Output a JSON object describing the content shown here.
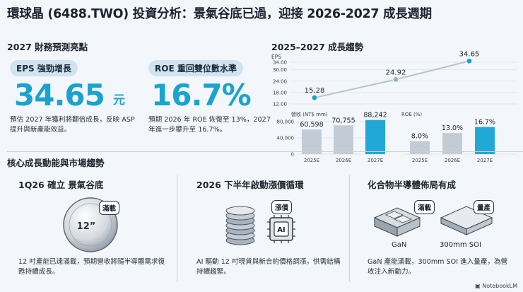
{
  "title": "環球晶 (6488.TWO) 投資分析：景氣谷底已過，迎接 2026-2027 成長週期",
  "highlights": {
    "heading": "2027 財務預測亮點",
    "eps": {
      "label": "EPS 強勁增長",
      "value": "34.65",
      "unit": "元",
      "desc": "預估 2027 年獲利將翻倍成長，反映 ASP 提升與新產能效益。"
    },
    "roe": {
      "label": "ROE 重回雙位數水準",
      "value": "16.7%",
      "desc": "預期 2026 年 ROE 恢復至 13%，2027 年進一步攀升至 16.7%。"
    }
  },
  "trend": {
    "heading": "2025–2027 成長趨勢",
    "eps_label": "EPS"
  },
  "chart_data": [
    {
      "type": "line",
      "title": "",
      "ylabel": "EPS",
      "x": [
        "2025E",
        "2026E",
        "2027E"
      ],
      "values": [
        15.28,
        24.92,
        34.65
      ],
      "data_labels": [
        "15.28",
        "24.92",
        "34.65"
      ],
      "ylim": [
        12,
        34
      ],
      "yticks": [
        "34.00",
        "30.00",
        "24.00",
        "18.00",
        "12.00"
      ],
      "color": "#1aa3cf"
    },
    {
      "type": "bar",
      "ylabel": "營收 (NT$ mm)",
      "categories": [
        "2025E",
        "2026E",
        "2027E"
      ],
      "values": [
        60598,
        70755,
        88242
      ],
      "data_labels": [
        "60,598",
        "70,755",
        "88,242"
      ],
      "ylim": [
        0,
        80000
      ],
      "yticks": [
        "80,000",
        "40,000",
        "0"
      ],
      "colors": [
        "#c3ccd6",
        "#c3ccd6",
        "#22a8d6"
      ]
    },
    {
      "type": "bar",
      "ylabel": "ROE (%)",
      "categories": [
        "2025E",
        "2026E",
        "2027E"
      ],
      "values": [
        8.0,
        13.0,
        16.7
      ],
      "data_labels": [
        "8.0%",
        "13.0%",
        "16.7%"
      ],
      "ylim": [
        0,
        20
      ],
      "colors": [
        "#c3ccd6",
        "#c3ccd6",
        "#22a8d6"
      ]
    }
  ],
  "drivers": {
    "heading": "核心成長動能與市場趨勢",
    "cards": [
      {
        "title": "1Q26 確立 景氣谷底",
        "badge": "滿載",
        "wafer_label": "12”",
        "desc": "12 吋產能已達滿載，預期營收將隨半導體需求復甦持續成長。"
      },
      {
        "title": "2026 下半年啟動漲價循環",
        "badge": "漲價",
        "chip_label": "AI",
        "desc": "AI 驅動 12 吋現貨與新合約價格調漲，供需結構持續趨緊。"
      },
      {
        "title": "化合物半導體佈局有成",
        "badge_left": "滿載",
        "badge_right": "量產",
        "gan_label": "GaN",
        "soi_label": "300mm SOI",
        "desc": "GaN 產能滿載，300mm SOI 進入量產，為營收注入新動力。"
      }
    ]
  },
  "footer": "NotebookLM",
  "colors": {
    "accent": "#1aa3cf",
    "bar_gray": "#c3ccd6",
    "bar_accent": "#22a8d6",
    "background": "#f3f6fa"
  }
}
